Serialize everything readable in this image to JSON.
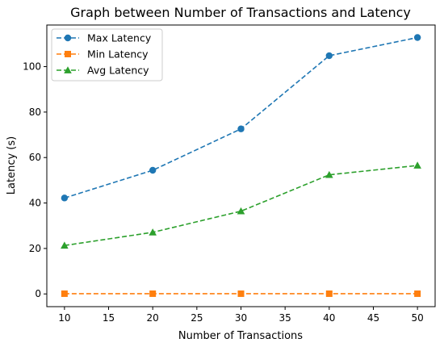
{
  "chart_data": {
    "type": "line",
    "title": "Graph between Number of Transactions and Latency",
    "xlabel": "Number of Transactions",
    "ylabel": "Latency (s)",
    "x": [
      10,
      20,
      30,
      40,
      50
    ],
    "xlim": [
      8,
      52
    ],
    "ylim": [
      -5.6,
      118.3
    ],
    "xticks": [
      10,
      15,
      20,
      25,
      30,
      35,
      40,
      45,
      50
    ],
    "yticks": [
      0,
      20,
      40,
      60,
      80,
      100
    ],
    "grid": false,
    "legend_position": "top-left",
    "series": [
      {
        "name": "Max Latency",
        "values": [
          42.2,
          54.4,
          72.6,
          104.8,
          112.8
        ],
        "color": "#1f77b4",
        "marker": "circle",
        "linestyle": "dashed"
      },
      {
        "name": "Min Latency",
        "values": [
          0.1,
          0.1,
          0.1,
          0.1,
          0.1
        ],
        "color": "#ff7f0e",
        "marker": "square",
        "linestyle": "dashed"
      },
      {
        "name": "Avg Latency",
        "values": [
          21.3,
          27.1,
          36.4,
          52.4,
          56.5
        ],
        "color": "#2ca02c",
        "marker": "triangle",
        "linestyle": "dashed"
      }
    ]
  }
}
